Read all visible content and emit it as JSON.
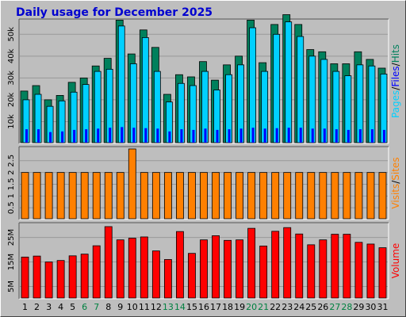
{
  "title": "Daily usage for December 2025",
  "colors": {
    "background": "#bebebe",
    "title": "#0000d0",
    "hits": "#00805c",
    "files": "#00d0ff",
    "pages": "#0000ff",
    "visits": "#ff8000",
    "volume": "#ff0000",
    "grid": "#999999",
    "axis_label_slash": "#000000"
  },
  "chart_data": [
    {
      "type": "bar",
      "panel": "top",
      "ylabel_parts": [
        {
          "text": "Pages",
          "color_key": "files"
        },
        {
          "text": "/",
          "color_key": "axis_label_slash"
        },
        {
          "text": "Files",
          "color_key": "pages"
        },
        {
          "text": "/",
          "color_key": "axis_label_slash"
        },
        {
          "text": "Hits",
          "color_key": "hits"
        }
      ],
      "ylim": [
        0,
        57000
      ],
      "yticks": [
        {
          "value": 10000,
          "label": "10k"
        },
        {
          "value": 20000,
          "label": "20k"
        },
        {
          "value": 30000,
          "label": "30k"
        },
        {
          "value": 40000,
          "label": "40k"
        },
        {
          "value": 50000,
          "label": "50k"
        }
      ],
      "grid": true,
      "series": [
        {
          "name": "Hits",
          "color_key": "hits",
          "values": [
            24000,
            26500,
            20000,
            22000,
            28000,
            30000,
            35500,
            39000,
            56500,
            41000,
            52000,
            44000,
            22500,
            31500,
            30500,
            37500,
            29000,
            36000,
            40000,
            56500,
            37000,
            54500,
            59000,
            54500,
            43000,
            42000,
            36500,
            36500,
            42000,
            38500,
            34500
          ]
        },
        {
          "name": "Files",
          "color_key": "files",
          "values": [
            20000,
            22500,
            17000,
            19500,
            23500,
            27000,
            33000,
            34000,
            53800,
            36500,
            48500,
            33000,
            19000,
            27500,
            26500,
            33000,
            24500,
            31500,
            36000,
            53000,
            33000,
            50000,
            55700,
            49000,
            40000,
            38500,
            33000,
            31000,
            36000,
            35500,
            31800
          ]
        },
        {
          "name": "Pages",
          "color_key": "pages",
          "values": [
            6500,
            6500,
            5200,
            5500,
            6200,
            6500,
            6800,
            7200,
            7500,
            7200,
            7000,
            6800,
            5500,
            6500,
            6200,
            6800,
            6200,
            6500,
            6800,
            7200,
            6800,
            7000,
            7200,
            7200,
            6800,
            6800,
            6500,
            6200,
            6500,
            6500,
            6200
          ]
        }
      ]
    },
    {
      "type": "bar",
      "panel": "middle",
      "ylabel_parts": [
        {
          "text": "Visits",
          "color_key": "visits"
        },
        {
          "text": "/",
          "color_key": "axis_label_slash"
        },
        {
          "text": "Sites",
          "color_key": "visits"
        }
      ],
      "ylim": [
        0,
        3.1
      ],
      "yticks": [
        {
          "value": 0.5,
          "label": "0.5"
        },
        {
          "value": 1,
          "label": "1"
        },
        {
          "value": 1.5,
          "label": "1.5"
        },
        {
          "value": 2,
          "label": "2"
        },
        {
          "value": 2.5,
          "label": "2.5"
        }
      ],
      "grid": true,
      "series": [
        {
          "name": "Visits",
          "color_key": "visits",
          "values": [
            2,
            2,
            2,
            2,
            2,
            2,
            2,
            2,
            2,
            3,
            2,
            2,
            2,
            2,
            2,
            2,
            2,
            2,
            2,
            2,
            2,
            2,
            2,
            2,
            2,
            2,
            2,
            2,
            2,
            2,
            2
          ]
        }
      ]
    },
    {
      "type": "bar",
      "panel": "bottom",
      "ylabel_parts": [
        {
          "text": "Volume",
          "color_key": "volume"
        }
      ],
      "ylim": [
        0,
        31000000
      ],
      "yticks": [
        {
          "value": 5000000,
          "label": "5M"
        },
        {
          "value": 15000000,
          "label": "15M"
        },
        {
          "value": 25000000,
          "label": "25M"
        }
      ],
      "grid": true,
      "series": [
        {
          "name": "Volume",
          "color_key": "volume",
          "values": [
            17000000,
            17400000,
            15000000,
            15600000,
            17500000,
            18200000,
            21600000,
            29400000,
            24000000,
            24700000,
            25200000,
            19500000,
            16000000,
            27400000,
            18500000,
            24000000,
            25700000,
            23800000,
            24000000,
            28700000,
            21500000,
            27500000,
            29000000,
            26400000,
            22000000,
            24000000,
            26300000,
            26300000,
            23000000,
            22300000,
            20800000
          ]
        }
      ]
    }
  ],
  "x_axis": {
    "labels": [
      "1",
      "2",
      "3",
      "4",
      "5",
      "6",
      "7",
      "8",
      "9",
      "10",
      "11",
      "12",
      "13",
      "14",
      "15",
      "16",
      "17",
      "18",
      "19",
      "20",
      "21",
      "22",
      "23",
      "24",
      "25",
      "26",
      "27",
      "28",
      "29",
      "30",
      "31"
    ],
    "weekend_days": [
      6,
      7,
      13,
      14,
      20,
      21,
      27,
      28
    ],
    "weekday_color": "#000000",
    "weekend_color": "#008040"
  }
}
